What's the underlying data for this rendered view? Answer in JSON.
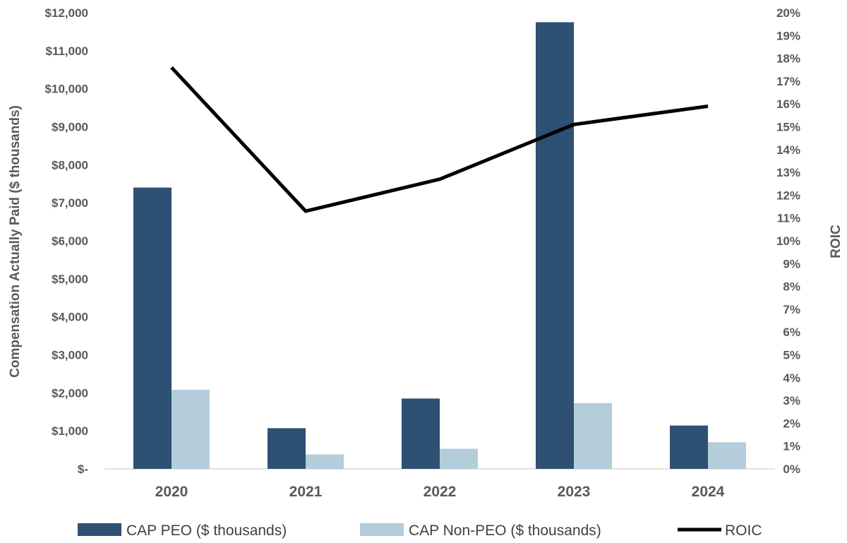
{
  "chart_data": {
    "type": "bar",
    "categories": [
      "2020",
      "2021",
      "2022",
      "2023",
      "2024"
    ],
    "series": [
      {
        "name": "CAP PEO ($ thousands)",
        "type": "bar",
        "axis": "left",
        "color": "#2e5073",
        "values": [
          7400,
          1070,
          1850,
          11750,
          1140
        ]
      },
      {
        "name": "CAP Non-PEO ($ thousands)",
        "type": "bar",
        "axis": "left",
        "color": "#b3cddb",
        "values": [
          2080,
          380,
          530,
          1730,
          700
        ]
      },
      {
        "name": "ROIC",
        "type": "line",
        "axis": "right",
        "color": "#000000",
        "values": [
          17.6,
          11.3,
          12.7,
          15.1,
          15.9
        ]
      }
    ],
    "ylabel": "Compensation Actually Paid ($ thousands)",
    "y2label": "ROIC",
    "ylim": [
      0,
      12000
    ],
    "y2lim": [
      0,
      20
    ],
    "yticks": [
      "$-",
      "$1,000",
      "$2,000",
      "$3,000",
      "$4,000",
      "$5,000",
      "$6,000",
      "$7,000",
      "$8,000",
      "$9,000",
      "$10,000",
      "$11,000",
      "$12,000"
    ],
    "y2ticks": [
      "0%",
      "1%",
      "2%",
      "3%",
      "4%",
      "5%",
      "6%",
      "7%",
      "8%",
      "9%",
      "10%",
      "11%",
      "12%",
      "13%",
      "14%",
      "15%",
      "16%",
      "17%",
      "18%",
      "19%",
      "20%"
    ],
    "grid": false,
    "legend": "bottom"
  }
}
